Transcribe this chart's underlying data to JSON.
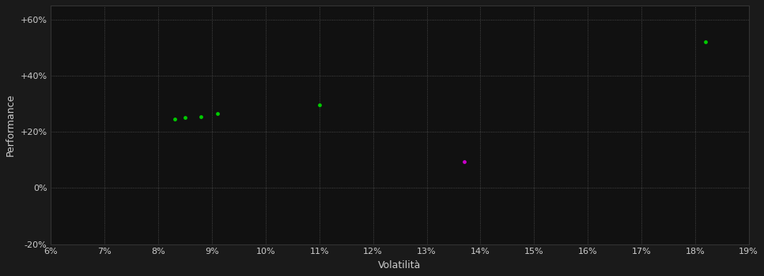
{
  "background_color": "#1a1a1a",
  "plot_bg_color": "#111111",
  "grid_color": "#555555",
  "text_color": "#cccccc",
  "xlabel": "Volatilità",
  "ylabel": "Performance",
  "xlim": [
    0.06,
    0.19
  ],
  "ylim": [
    -0.2,
    0.65
  ],
  "xtick_labels": [
    "6%",
    "7%",
    "8%",
    "9%",
    "10%",
    "11%",
    "12%",
    "13%",
    "14%",
    "15%",
    "16%",
    "17%",
    "18%",
    "19%"
  ],
  "xtick_vals": [
    0.06,
    0.07,
    0.08,
    0.09,
    0.1,
    0.11,
    0.12,
    0.13,
    0.14,
    0.15,
    0.16,
    0.17,
    0.18,
    0.19
  ],
  "ytick_labels": [
    "-20%",
    "0%",
    "+20%",
    "+40%",
    "+60%"
  ],
  "ytick_vals": [
    -0.2,
    0.0,
    0.2,
    0.4,
    0.6
  ],
  "green_points": [
    [
      0.083,
      0.245
    ],
    [
      0.085,
      0.25
    ],
    [
      0.088,
      0.255
    ],
    [
      0.091,
      0.265
    ],
    [
      0.11,
      0.295
    ],
    [
      0.182,
      0.52
    ]
  ],
  "magenta_points": [
    [
      0.137,
      0.095
    ]
  ],
  "green_color": "#00cc00",
  "magenta_color": "#cc00cc",
  "point_size": 12,
  "figsize": [
    9.66,
    3.5
  ],
  "dpi": 100
}
